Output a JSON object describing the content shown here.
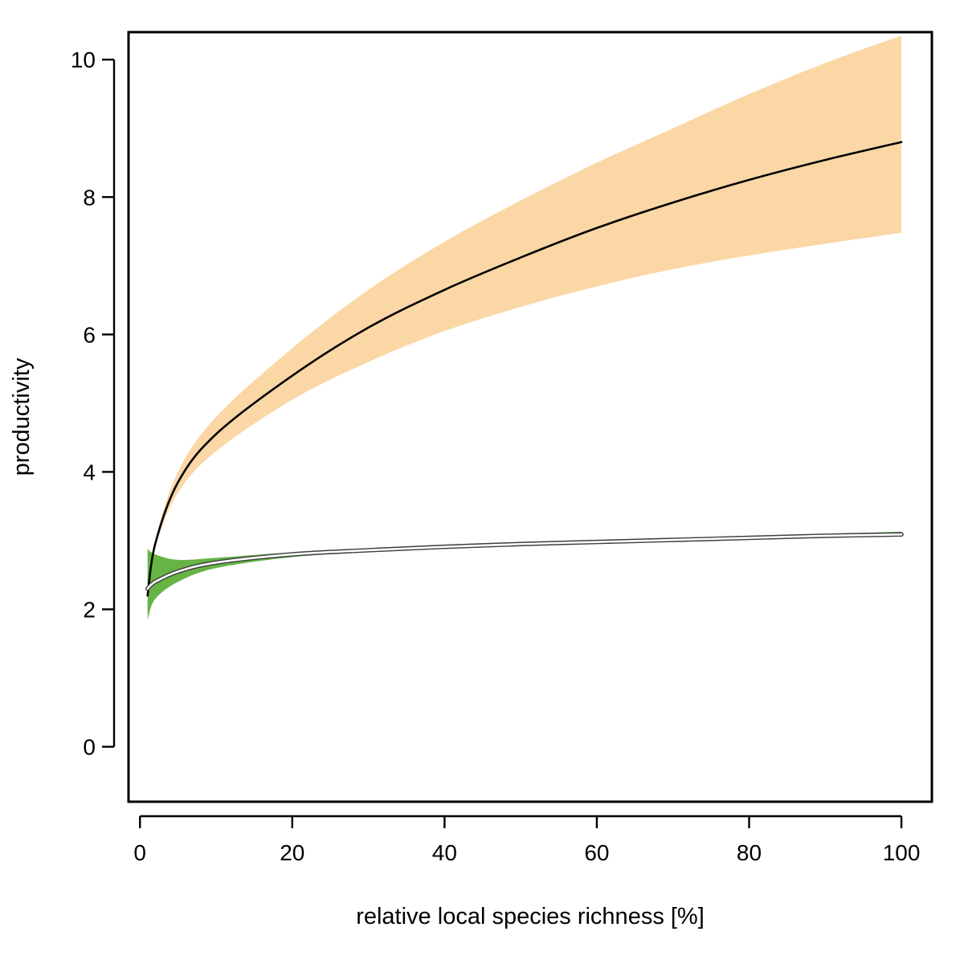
{
  "chart_data": {
    "type": "line",
    "xlabel": "relative local species richness [%]",
    "ylabel": "productivity",
    "xlim": [
      -1.5,
      104
    ],
    "ylim": [
      -0.8,
      10.4
    ],
    "x_ticks": [
      0,
      20,
      40,
      60,
      80,
      100
    ],
    "y_ticks": [
      0,
      2,
      4,
      6,
      8,
      10
    ],
    "grid": false,
    "legend": "none",
    "x": [
      1,
      2,
      5,
      10,
      20,
      30,
      40,
      50,
      60,
      70,
      80,
      90,
      100
    ],
    "series": [
      {
        "color": "#000000",
        "band_color": "#fbd7a6",
        "values": [
          2.2,
          2.95,
          3.85,
          4.55,
          5.4,
          6.1,
          6.65,
          7.12,
          7.55,
          7.92,
          8.25,
          8.54,
          8.8
        ],
        "band_lower": [
          2.2,
          2.9,
          3.7,
          4.3,
          5.05,
          5.6,
          6.05,
          6.4,
          6.7,
          6.95,
          7.15,
          7.32,
          7.48
        ],
        "band_upper": [
          2.2,
          3.0,
          4.0,
          4.8,
          5.8,
          6.65,
          7.35,
          7.95,
          8.5,
          9.0,
          9.5,
          9.95,
          10.35
        ]
      },
      {
        "color": "#ffffff",
        "band_color": "#67b445",
        "values": [
          2.3,
          2.4,
          2.55,
          2.68,
          2.8,
          2.86,
          2.91,
          2.95,
          2.98,
          3.01,
          3.04,
          3.07,
          3.09
        ],
        "band_lower": [
          1.85,
          2.15,
          2.4,
          2.6,
          2.76,
          2.83,
          2.88,
          2.92,
          2.96,
          2.99,
          3.02,
          3.04,
          3.06
        ],
        "band_upper": [
          2.88,
          2.8,
          2.72,
          2.75,
          2.83,
          2.89,
          2.94,
          2.98,
          3.01,
          3.04,
          3.07,
          3.1,
          3.13
        ]
      }
    ]
  }
}
